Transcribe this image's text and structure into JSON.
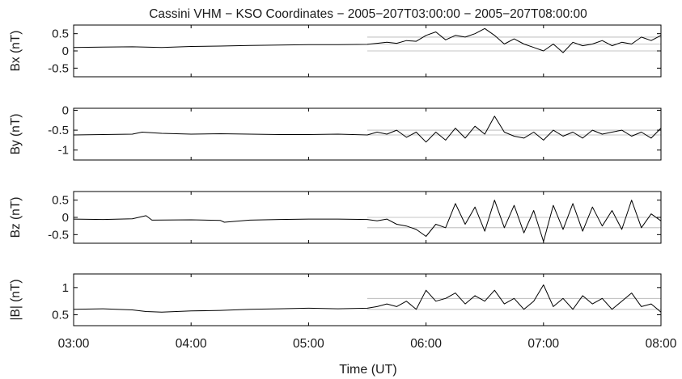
{
  "chart_data": {
    "type": "line",
    "title": "Cassini VHM − KSO Coordinates − 2005−207T03:00:00 − 2005−207T08:00:00",
    "xlabel": "Time (UT)",
    "x_ticks": [
      "03:00",
      "04:00",
      "05:00",
      "06:00",
      "07:00",
      "08:00"
    ],
    "x_range": [
      "03:00",
      "08:00"
    ],
    "line_color": "#000000",
    "reference_line_color": "#b0b0b0",
    "grid": false,
    "panels": [
      {
        "ylabel": "Bx (nT)",
        "ylim": [
          -0.75,
          0.75
        ],
        "yticks": [
          "0.5",
          "0",
          "-0.5"
        ],
        "ytick_values": [
          0.5,
          0,
          -0.5
        ],
        "reference_lines": {
          "start": "05:30",
          "levels": [
            0.4,
            0.2,
            0.0
          ]
        },
        "series": [
          {
            "points": [
              [
                "03:00",
                0.1
              ],
              [
                "03:15",
                0.11
              ],
              [
                "03:30",
                0.12
              ],
              [
                "03:45",
                0.1
              ],
              [
                "04:00",
                0.13
              ],
              [
                "04:15",
                0.14
              ],
              [
                "04:30",
                0.16
              ],
              [
                "04:45",
                0.17
              ],
              [
                "05:00",
                0.18
              ],
              [
                "05:15",
                0.18
              ],
              [
                "05:30",
                0.19
              ],
              [
                "05:35",
                0.22
              ],
              [
                "05:40",
                0.25
              ],
              [
                "05:45",
                0.22
              ],
              [
                "05:50",
                0.3
              ],
              [
                "05:55",
                0.28
              ],
              [
                "06:00",
                0.45
              ],
              [
                "06:05",
                0.55
              ],
              [
                "06:10",
                0.32
              ],
              [
                "06:15",
                0.45
              ],
              [
                "06:20",
                0.4
              ],
              [
                "06:25",
                0.5
              ],
              [
                "06:30",
                0.65
              ],
              [
                "06:35",
                0.45
              ],
              [
                "06:40",
                0.2
              ],
              [
                "06:45",
                0.35
              ],
              [
                "06:50",
                0.2
              ],
              [
                "06:55",
                0.1
              ],
              [
                "07:00",
                0.0
              ],
              [
                "07:05",
                0.2
              ],
              [
                "07:10",
                -0.05
              ],
              [
                "07:15",
                0.25
              ],
              [
                "07:20",
                0.15
              ],
              [
                "07:25",
                0.2
              ],
              [
                "07:30",
                0.3
              ],
              [
                "07:35",
                0.15
              ],
              [
                "07:40",
                0.25
              ],
              [
                "07:45",
                0.2
              ],
              [
                "07:50",
                0.4
              ],
              [
                "07:55",
                0.3
              ],
              [
                "08:00",
                0.45
              ]
            ]
          }
        ]
      },
      {
        "ylabel": "By (nT)",
        "ylim": [
          -1.25,
          0.05
        ],
        "yticks": [
          "0",
          "-0.5",
          "-1"
        ],
        "ytick_values": [
          0,
          -0.5,
          -1
        ],
        "reference_lines": {
          "start": "05:30",
          "levels": [
            -0.5,
            -0.62
          ]
        },
        "series": [
          {
            "points": [
              [
                "03:00",
                -0.62
              ],
              [
                "03:15",
                -0.61
              ],
              [
                "03:30",
                -0.6
              ],
              [
                "03:35",
                -0.55
              ],
              [
                "03:45",
                -0.58
              ],
              [
                "04:00",
                -0.6
              ],
              [
                "04:15",
                -0.59
              ],
              [
                "04:30",
                -0.6
              ],
              [
                "04:45",
                -0.61
              ],
              [
                "05:00",
                -0.61
              ],
              [
                "05:15",
                -0.6
              ],
              [
                "05:30",
                -0.62
              ],
              [
                "05:35",
                -0.55
              ],
              [
                "05:40",
                -0.6
              ],
              [
                "05:45",
                -0.5
              ],
              [
                "05:50",
                -0.68
              ],
              [
                "05:55",
                -0.55
              ],
              [
                "06:00",
                -0.8
              ],
              [
                "06:05",
                -0.55
              ],
              [
                "06:10",
                -0.75
              ],
              [
                "06:15",
                -0.45
              ],
              [
                "06:20",
                -0.7
              ],
              [
                "06:25",
                -0.4
              ],
              [
                "06:30",
                -0.6
              ],
              [
                "06:35",
                -0.15
              ],
              [
                "06:40",
                -0.55
              ],
              [
                "06:45",
                -0.65
              ],
              [
                "06:50",
                -0.7
              ],
              [
                "06:55",
                -0.55
              ],
              [
                "07:00",
                -0.75
              ],
              [
                "07:05",
                -0.5
              ],
              [
                "07:10",
                -0.65
              ],
              [
                "07:15",
                -0.55
              ],
              [
                "07:20",
                -0.7
              ],
              [
                "07:25",
                -0.5
              ],
              [
                "07:30",
                -0.6
              ],
              [
                "07:35",
                -0.55
              ],
              [
                "07:40",
                -0.5
              ],
              [
                "07:45",
                -0.65
              ],
              [
                "07:50",
                -0.55
              ],
              [
                "07:55",
                -0.7
              ],
              [
                "08:00",
                -0.45
              ]
            ]
          }
        ]
      },
      {
        "ylabel": "Bz (nT)",
        "ylim": [
          -0.75,
          0.75
        ],
        "yticks": [
          "0.5",
          "0",
          "-0.5"
        ],
        "ytick_values": [
          0.5,
          0,
          -0.5
        ],
        "reference_lines": {
          "start": "05:30",
          "levels": [
            0.0,
            -0.3
          ]
        },
        "series": [
          {
            "points": [
              [
                "03:00",
                -0.05
              ],
              [
                "03:15",
                -0.06
              ],
              [
                "03:30",
                -0.04
              ],
              [
                "03:37",
                0.05
              ],
              [
                "03:40",
                -0.08
              ],
              [
                "04:00",
                -0.07
              ],
              [
                "04:15",
                -0.09
              ],
              [
                "04:17",
                -0.14
              ],
              [
                "04:30",
                -0.08
              ],
              [
                "04:45",
                -0.06
              ],
              [
                "05:00",
                -0.05
              ],
              [
                "05:15",
                -0.05
              ],
              [
                "05:30",
                -0.06
              ],
              [
                "05:35",
                -0.1
              ],
              [
                "05:40",
                -0.05
              ],
              [
                "05:45",
                -0.2
              ],
              [
                "05:50",
                -0.25
              ],
              [
                "05:55",
                -0.35
              ],
              [
                "06:00",
                -0.55
              ],
              [
                "06:05",
                -0.2
              ],
              [
                "06:10",
                -0.3
              ],
              [
                "06:15",
                0.4
              ],
              [
                "06:20",
                -0.2
              ],
              [
                "06:25",
                0.3
              ],
              [
                "06:30",
                -0.4
              ],
              [
                "06:35",
                0.5
              ],
              [
                "06:40",
                -0.3
              ],
              [
                "06:45",
                0.35
              ],
              [
                "06:50",
                -0.45
              ],
              [
                "06:55",
                0.2
              ],
              [
                "07:00",
                -0.7
              ],
              [
                "07:05",
                0.35
              ],
              [
                "07:10",
                -0.35
              ],
              [
                "07:15",
                0.4
              ],
              [
                "07:20",
                -0.4
              ],
              [
                "07:25",
                0.3
              ],
              [
                "07:30",
                -0.25
              ],
              [
                "07:35",
                0.2
              ],
              [
                "07:40",
                -0.35
              ],
              [
                "07:45",
                0.5
              ],
              [
                "07:50",
                -0.3
              ],
              [
                "07:55",
                0.1
              ],
              [
                "08:00",
                -0.1
              ]
            ]
          }
        ]
      },
      {
        "ylabel": "|B| (nT)",
        "ylim": [
          0.3,
          1.25
        ],
        "yticks": [
          "1",
          "0.5"
        ],
        "ytick_values": [
          1,
          0.5
        ],
        "reference_lines": {
          "start": "05:30",
          "levels": [
            0.8,
            0.6
          ]
        },
        "series": [
          {
            "points": [
              [
                "03:00",
                0.6
              ],
              [
                "03:15",
                0.61
              ],
              [
                "03:30",
                0.59
              ],
              [
                "03:37",
                0.56
              ],
              [
                "03:45",
                0.55
              ],
              [
                "04:00",
                0.57
              ],
              [
                "04:15",
                0.58
              ],
              [
                "04:30",
                0.6
              ],
              [
                "04:45",
                0.61
              ],
              [
                "05:00",
                0.62
              ],
              [
                "05:15",
                0.61
              ],
              [
                "05:30",
                0.62
              ],
              [
                "05:35",
                0.65
              ],
              [
                "05:40",
                0.7
              ],
              [
                "05:45",
                0.65
              ],
              [
                "05:50",
                0.75
              ],
              [
                "05:55",
                0.6
              ],
              [
                "06:00",
                0.95
              ],
              [
                "06:05",
                0.75
              ],
              [
                "06:10",
                0.8
              ],
              [
                "06:15",
                0.9
              ],
              [
                "06:20",
                0.7
              ],
              [
                "06:25",
                0.85
              ],
              [
                "06:30",
                0.75
              ],
              [
                "06:35",
                0.95
              ],
              [
                "06:40",
                0.7
              ],
              [
                "06:45",
                0.8
              ],
              [
                "06:50",
                0.6
              ],
              [
                "06:55",
                0.75
              ],
              [
                "07:00",
                1.05
              ],
              [
                "07:05",
                0.65
              ],
              [
                "07:10",
                0.8
              ],
              [
                "07:15",
                0.6
              ],
              [
                "07:20",
                0.85
              ],
              [
                "07:25",
                0.7
              ],
              [
                "07:30",
                0.8
              ],
              [
                "07:35",
                0.6
              ],
              [
                "07:40",
                0.75
              ],
              [
                "07:45",
                0.9
              ],
              [
                "07:50",
                0.65
              ],
              [
                "07:55",
                0.7
              ],
              [
                "08:00",
                0.55
              ]
            ]
          }
        ]
      }
    ]
  }
}
